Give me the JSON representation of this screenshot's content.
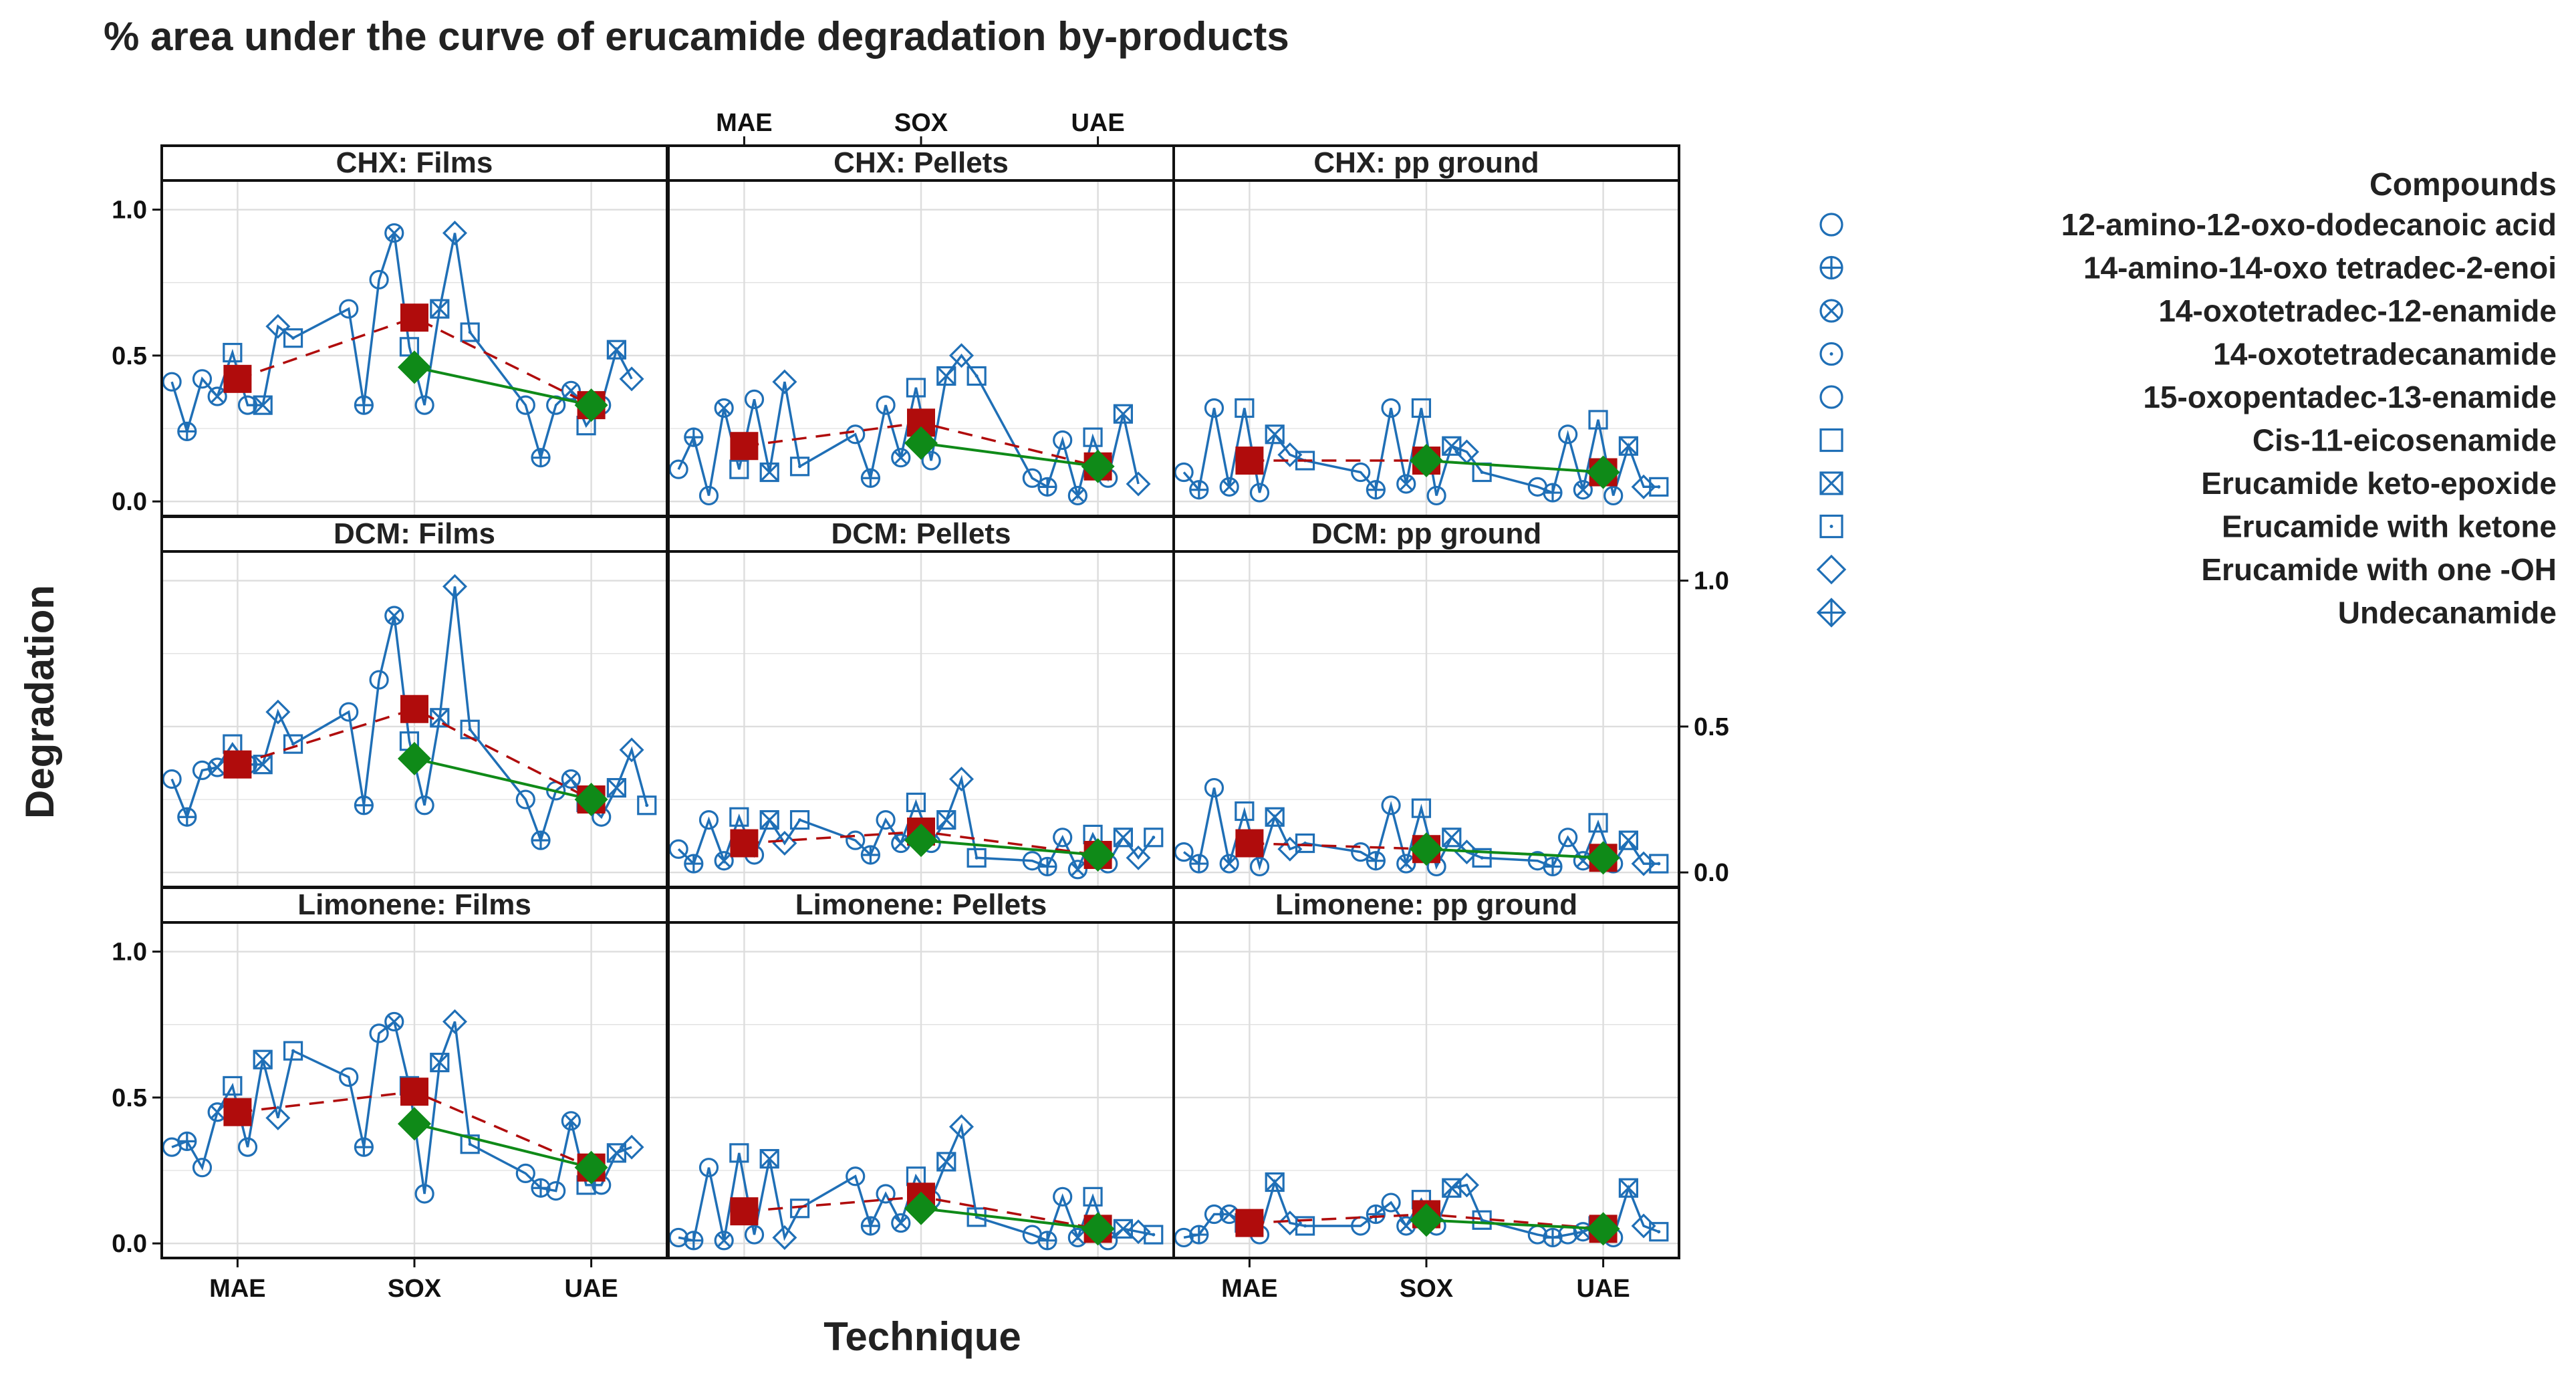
{
  "chart_data": {
    "type": "line",
    "title": "% area under the curve of erucamide degradation by-products",
    "xlabel": "Technique",
    "ylabel": "Degradation",
    "categories": [
      "MAE",
      "SOX",
      "UAE"
    ],
    "ylim": [
      -0.05,
      1.1
    ],
    "yticks": [
      "0.0",
      "0.5",
      "1.0"
    ],
    "grid": true,
    "legend_position": "right",
    "legend": {
      "title": "Compounds",
      "items": [
        {
          "name": "12-amino-12-oxo-dodecanoic acid",
          "marker": "circle"
        },
        {
          "name": "14-amino-14-oxo  tetradec-2-enoi",
          "marker": "circle-plus"
        },
        {
          "name": "14-oxotetradec-12-enamide",
          "marker": "circle-x"
        },
        {
          "name": "14-oxotetradecanamide",
          "marker": "circle-dot"
        },
        {
          "name": "15-oxopentadec-13-enamide",
          "marker": "circle-small"
        },
        {
          "name": "Cis-11-eicosenamide",
          "marker": "square"
        },
        {
          "name": "Erucamide keto-epoxide",
          "marker": "square-x"
        },
        {
          "name": "Erucamide with ketone",
          "marker": "square-dot"
        },
        {
          "name": "Erucamide with one -OH",
          "marker": "diamond"
        },
        {
          "name": "Undecanamide",
          "marker": "diamond-plus"
        }
      ]
    },
    "colors": {
      "points": "#1f6fb6",
      "mean": "#b00c0c",
      "median": "#0f8a18",
      "grid": "#dddddd",
      "frame": "#111111"
    },
    "panels": [
      {
        "strip": "CHX: Films",
        "mean": [
          0.42,
          0.63,
          0.33
        ],
        "median": [
          null,
          0.46,
          0.33
        ],
        "groups": [
          [
            0.41,
            0.24,
            0.42,
            0.36,
            0.51,
            0.33,
            0.33,
            0.6,
            0.56
          ],
          [
            0.66,
            0.33,
            0.76,
            0.92,
            0.53,
            0.33,
            0.66,
            0.92,
            0.58
          ],
          [
            0.33,
            0.15,
            0.33,
            0.38,
            0.26,
            0.33,
            0.52,
            0.42
          ]
        ]
      },
      {
        "strip": "CHX: Pellets",
        "mean": [
          0.19,
          0.27,
          0.12
        ],
        "median": [
          null,
          0.2,
          0.12
        ],
        "groups": [
          [
            0.11,
            0.22,
            0.02,
            0.32,
            0.11,
            0.35,
            0.1,
            0.41,
            0.12
          ],
          [
            0.23,
            0.08,
            0.33,
            0.15,
            0.39,
            0.14,
            0.43,
            0.5,
            0.43
          ],
          [
            0.08,
            0.05,
            0.21,
            0.02,
            0.22,
            0.08,
            0.3,
            0.06
          ]
        ]
      },
      {
        "strip": "CHX: pp ground",
        "mean": [
          0.14,
          0.14,
          0.1
        ],
        "median": [
          null,
          0.14,
          0.1
        ],
        "groups": [
          [
            0.1,
            0.04,
            0.32,
            0.05,
            0.32,
            0.03,
            0.23,
            0.16,
            0.14
          ],
          [
            0.1,
            0.04,
            0.32,
            0.06,
            0.32,
            0.02,
            0.19,
            0.17,
            0.1
          ],
          [
            0.05,
            0.03,
            0.23,
            0.04,
            0.28,
            0.02,
            0.19,
            0.05,
            0.05
          ]
        ]
      },
      {
        "strip": "DCM: Films",
        "mean": [
          0.37,
          0.56,
          0.25
        ],
        "median": [
          null,
          0.39,
          0.25
        ],
        "groups": [
          [
            0.32,
            0.19,
            0.35,
            0.36,
            0.44,
            0.37,
            0.37,
            0.55,
            0.44
          ],
          [
            0.55,
            0.23,
            0.66,
            0.88,
            0.45,
            0.23,
            0.53,
            0.98,
            0.49
          ],
          [
            0.25,
            0.11,
            0.28,
            0.32,
            0.24,
            0.19,
            0.29,
            0.42,
            0.23
          ]
        ]
      },
      {
        "strip": "DCM: Pellets",
        "mean": [
          0.1,
          0.14,
          0.06
        ],
        "median": [
          null,
          0.11,
          0.06
        ],
        "groups": [
          [
            0.08,
            0.03,
            0.18,
            0.04,
            0.19,
            0.06,
            0.18,
            0.1,
            0.18
          ],
          [
            0.11,
            0.06,
            0.18,
            0.1,
            0.24,
            0.1,
            0.18,
            0.32,
            0.05
          ],
          [
            0.04,
            0.02,
            0.12,
            0.01,
            0.13,
            0.03,
            0.12,
            0.05,
            0.12
          ]
        ]
      },
      {
        "strip": "DCM: pp ground",
        "mean": [
          0.1,
          0.08,
          0.05
        ],
        "median": [
          null,
          0.08,
          0.05
        ],
        "groups": [
          [
            0.07,
            0.03,
            0.29,
            0.03,
            0.21,
            0.02,
            0.19,
            0.08,
            0.1
          ],
          [
            0.07,
            0.04,
            0.23,
            0.03,
            0.22,
            0.02,
            0.12,
            0.07,
            0.05
          ],
          [
            0.04,
            0.02,
            0.12,
            0.04,
            0.17,
            0.03,
            0.11,
            0.03,
            0.03
          ]
        ]
      },
      {
        "strip": "Limonene: Films",
        "mean": [
          0.45,
          0.52,
          0.26
        ],
        "median": [
          null,
          0.41,
          0.26
        ],
        "groups": [
          [
            0.33,
            0.35,
            0.26,
            0.45,
            0.54,
            0.33,
            0.63,
            0.43,
            0.66
          ],
          [
            0.57,
            0.33,
            0.72,
            0.76,
            0.54,
            0.17,
            0.62,
            0.76,
            0.34
          ],
          [
            0.24,
            0.19,
            0.18,
            0.42,
            0.2,
            0.2,
            0.31,
            0.33
          ]
        ]
      },
      {
        "strip": "Limonene: Pellets",
        "mean": [
          0.11,
          0.16,
          0.05
        ],
        "median": [
          null,
          0.12,
          0.05
        ],
        "groups": [
          [
            0.02,
            0.01,
            0.26,
            0.01,
            0.31,
            0.03,
            0.29,
            0.02,
            0.12
          ],
          [
            0.23,
            0.06,
            0.17,
            0.07,
            0.23,
            0.15,
            0.28,
            0.4,
            0.09
          ],
          [
            0.03,
            0.01,
            0.16,
            0.02,
            0.16,
            0.01,
            0.05,
            0.04,
            0.03
          ]
        ]
      },
      {
        "strip": "Limonene: pp ground",
        "mean": [
          0.07,
          0.1,
          0.05
        ],
        "median": [
          null,
          0.08,
          0.05
        ],
        "groups": [
          [
            0.02,
            0.03,
            0.1,
            0.1,
            0.07,
            0.03,
            0.21,
            0.07,
            0.06
          ],
          [
            0.06,
            0.1,
            0.14,
            0.06,
            0.15,
            0.06,
            0.19,
            0.2,
            0.08
          ],
          [
            0.03,
            0.02,
            0.03,
            0.04,
            0.06,
            0.02,
            0.19,
            0.06,
            0.04
          ]
        ]
      }
    ]
  }
}
